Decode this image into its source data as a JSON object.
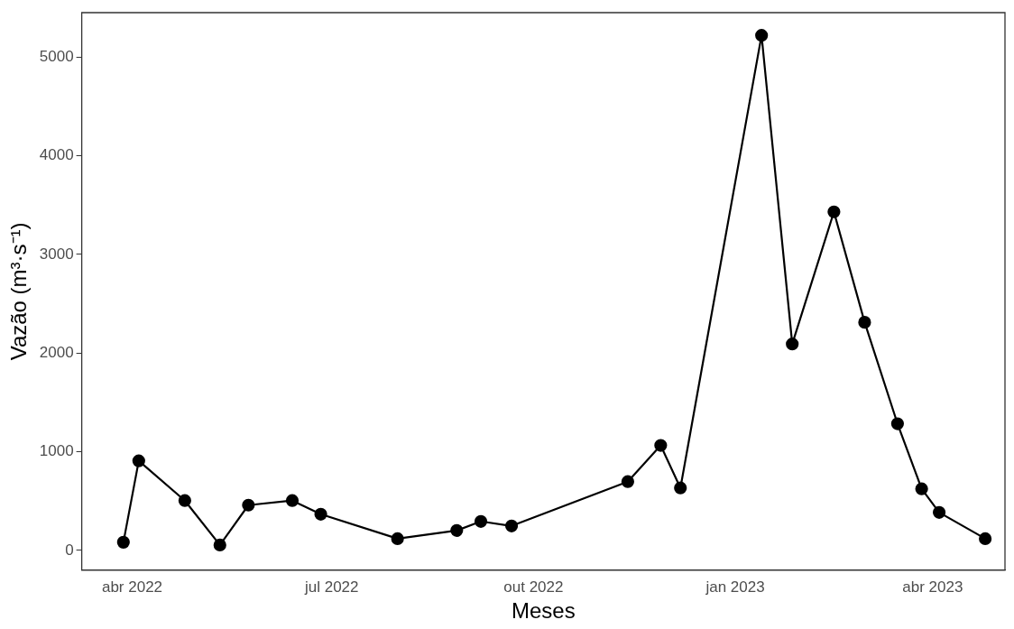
{
  "chart_data": {
    "type": "line",
    "xlabel": "Meses",
    "ylabel": "Vazão (m³·s⁻¹)",
    "x": [
      "2022-03-28",
      "2022-04-04",
      "2022-04-25",
      "2022-05-11",
      "2022-05-24",
      "2022-06-13",
      "2022-06-26",
      "2022-07-31",
      "2022-08-27",
      "2022-09-07",
      "2022-09-21",
      "2022-11-13",
      "2022-11-28",
      "2022-12-07",
      "2023-01-13",
      "2023-01-27",
      "2023-02-15",
      "2023-03-01",
      "2023-03-16",
      "2023-03-27",
      "2023-04-04",
      "2023-04-25"
    ],
    "series": [
      {
        "color": "#000000",
        "values": [
          83,
          908,
          505,
          55,
          459,
          505,
          367,
          119,
          202,
          294,
          248,
          697,
          1064,
          633,
          5220,
          2092,
          3431,
          2312,
          1284,
          624,
          385,
          119
        ]
      }
    ],
    "xlim": [
      "2022-03-09",
      "2023-05-04"
    ],
    "xticks": [
      {
        "value": "2022-04-01",
        "label": "abr 2022"
      },
      {
        "value": "2022-07-01",
        "label": "jul 2022"
      },
      {
        "value": "2022-10-01",
        "label": "out 2022"
      },
      {
        "value": "2023-01-01",
        "label": "jan 2023"
      },
      {
        "value": "2023-04-01",
        "label": "abr 2023"
      }
    ],
    "ylim": [
      -200,
      5450
    ],
    "yticks": [
      0,
      1000,
      2000,
      3000,
      4000,
      5000
    ],
    "grid": false,
    "legend": false,
    "marker": "circle",
    "line_style": "solid"
  }
}
